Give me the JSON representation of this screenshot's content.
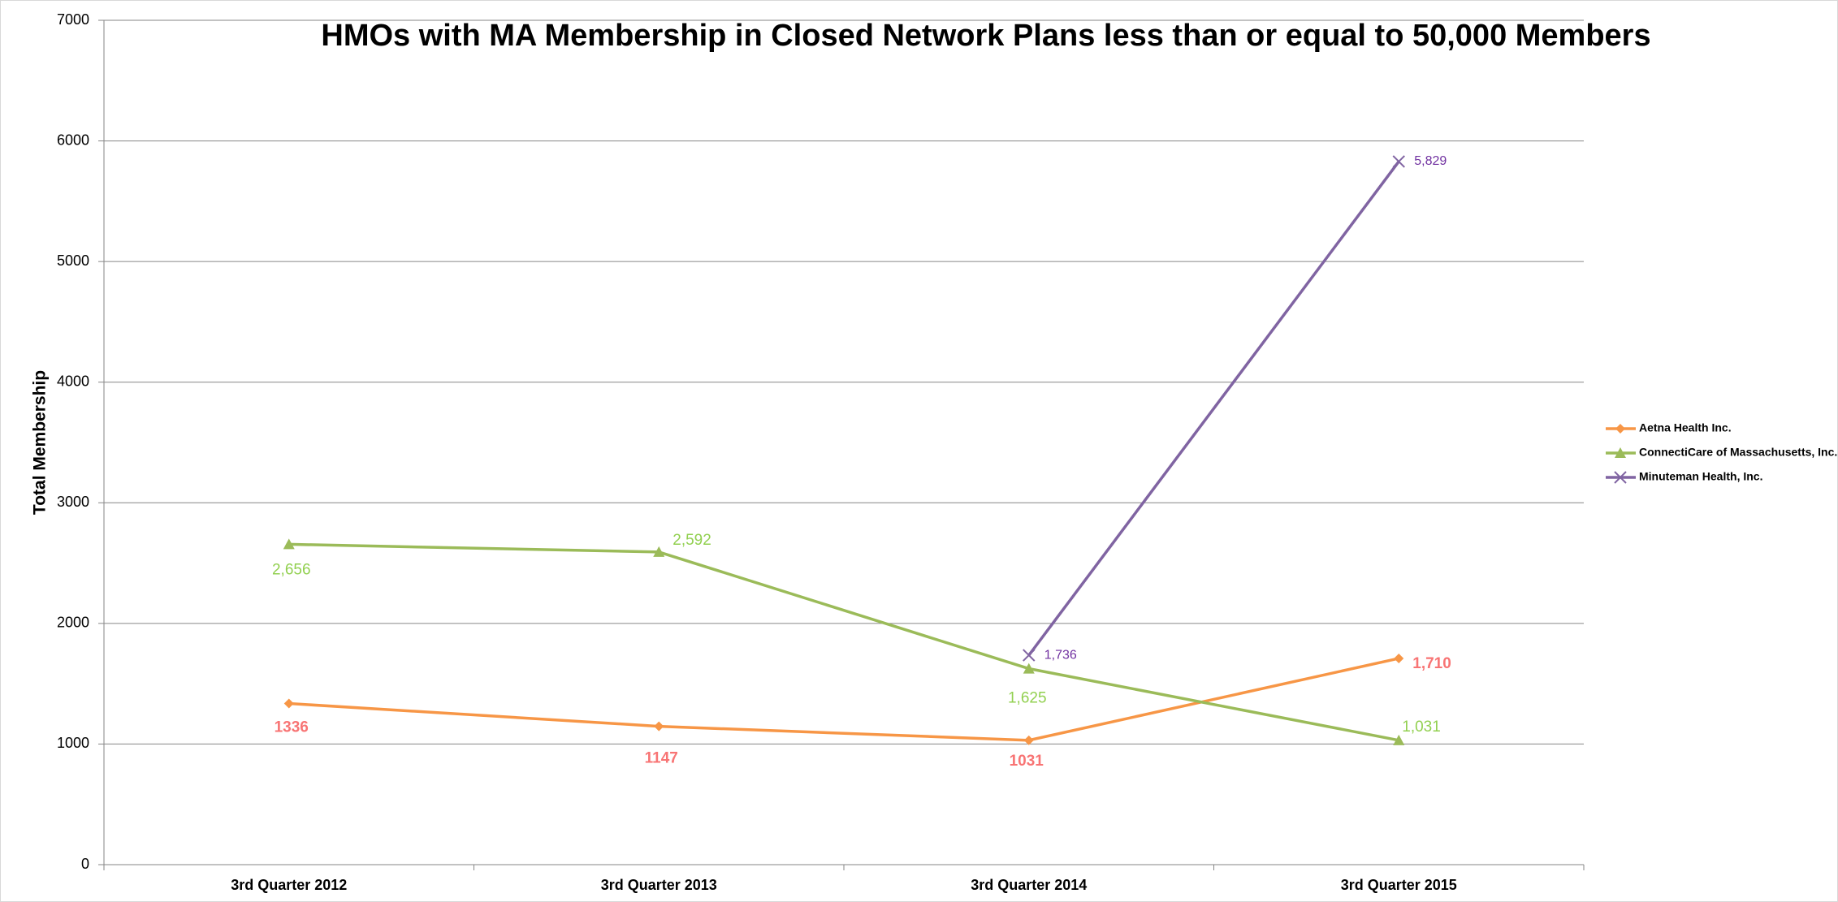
{
  "chart_data": {
    "type": "line",
    "title": "HMOs with MA Membership in Closed Network Plans less than or equal to 50,000 Members",
    "y_label": "Total Membership",
    "categories": [
      "3rd Quarter 2012",
      "3rd Quarter 2013",
      "3rd Quarter 2014",
      "3rd Quarter 2015"
    ],
    "series": [
      {
        "name": "Aetna Health Inc.",
        "color": "#f79646",
        "marker": "diamond",
        "label_color": "#f87474",
        "values": [
          1336,
          1147,
          1031,
          1710
        ],
        "value_labels": [
          "1336",
          "1147",
          "1031",
          "1,710"
        ]
      },
      {
        "name": "ConnectiCare of Massachusetts, Inc.",
        "color": "#9bbb59",
        "marker": "triangle",
        "label_color": "#92d050",
        "values": [
          2656,
          2592,
          1625,
          1031
        ],
        "value_labels": [
          "2,656",
          "2,592",
          "1,625",
          "1,031"
        ]
      },
      {
        "name": "Minuteman Health, Inc.",
        "color": "#8064a2",
        "marker": "x",
        "label_color": "#7030a0",
        "values": [
          null,
          null,
          1736,
          5829
        ],
        "value_labels": [
          null,
          null,
          "1,736",
          "5,829"
        ]
      }
    ],
    "ylim": [
      0,
      7000
    ],
    "yticks": [
      0,
      1000,
      2000,
      3000,
      4000,
      5000,
      6000,
      7000
    ],
    "grid": true,
    "legend": "right"
  }
}
